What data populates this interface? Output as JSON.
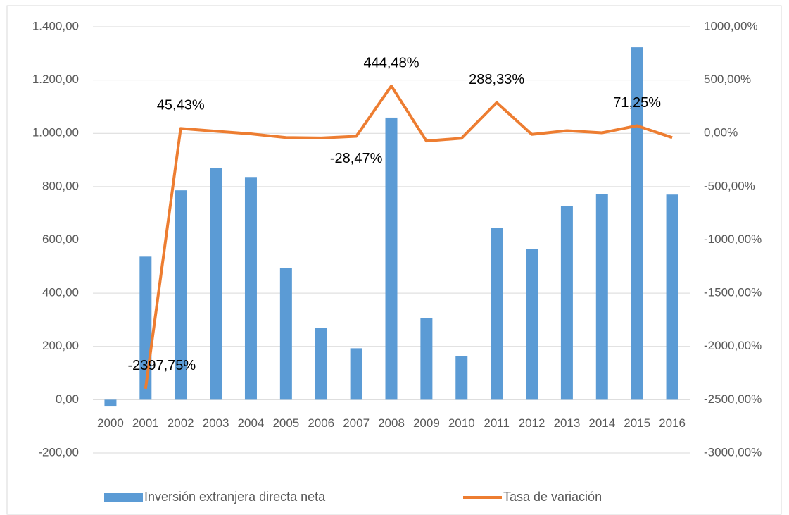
{
  "chart_data": {
    "type": "bar_line",
    "categories": [
      "2000",
      "2001",
      "2002",
      "2003",
      "2004",
      "2005",
      "2006",
      "2007",
      "2008",
      "2009",
      "2010",
      "2011",
      "2012",
      "2013",
      "2014",
      "2015",
      "2016"
    ],
    "series": [
      {
        "name": "Inversión extranjera directa neta",
        "type": "bar",
        "color": "#5b9bd5",
        "values": [
          -23,
          537,
          786,
          871,
          836,
          495,
          270,
          193,
          1059,
          307,
          164,
          646,
          566,
          728,
          773,
          1323,
          770
        ]
      },
      {
        "name": "Tasa de variación",
        "type": "line",
        "axis": "y2",
        "color": "#ed7d31",
        "values": [
          null,
          -2397.75,
          45.43,
          20,
          -5,
          -40,
          -44,
          -28.47,
          444.48,
          -72,
          -46,
          288.33,
          -10,
          25,
          5,
          71.25,
          -40
        ],
        "value_labels": [
          null,
          "-2397,75%",
          "45,43%",
          null,
          null,
          null,
          null,
          "-28,47%",
          "444,48%",
          null,
          null,
          "288,33%",
          null,
          null,
          null,
          "71,25%",
          null
        ]
      }
    ],
    "ylim": [
      -200,
      1400
    ],
    "yticks": [
      {
        "value": -200,
        "label": "-200,00"
      },
      {
        "value": 0,
        "label": "0,00"
      },
      {
        "value": 200,
        "label": "200,00"
      },
      {
        "value": 400,
        "label": "400,00"
      },
      {
        "value": 600,
        "label": "600,00"
      },
      {
        "value": 800,
        "label": "800,00"
      },
      {
        "value": 1000,
        "label": "1.000,00"
      },
      {
        "value": 1200,
        "label": "1.200,00"
      },
      {
        "value": 1400,
        "label": "1.400,00"
      }
    ],
    "y2lim": [
      -3000,
      1000
    ],
    "y2ticks": [
      {
        "value": -3000,
        "label": "-3000,00%"
      },
      {
        "value": -2500,
        "label": "-2500,00%"
      },
      {
        "value": -2000,
        "label": "-2000,00%"
      },
      {
        "value": -1500,
        "label": "-1500,00%"
      },
      {
        "value": -1000,
        "label": "-1000,00%"
      },
      {
        "value": -500,
        "label": "-500,00%"
      },
      {
        "value": 0,
        "label": "0,00%"
      },
      {
        "value": 500,
        "label": "500,00%"
      },
      {
        "value": 1000,
        "label": "1000,00%"
      }
    ],
    "grid": true,
    "legend": "bottom"
  }
}
